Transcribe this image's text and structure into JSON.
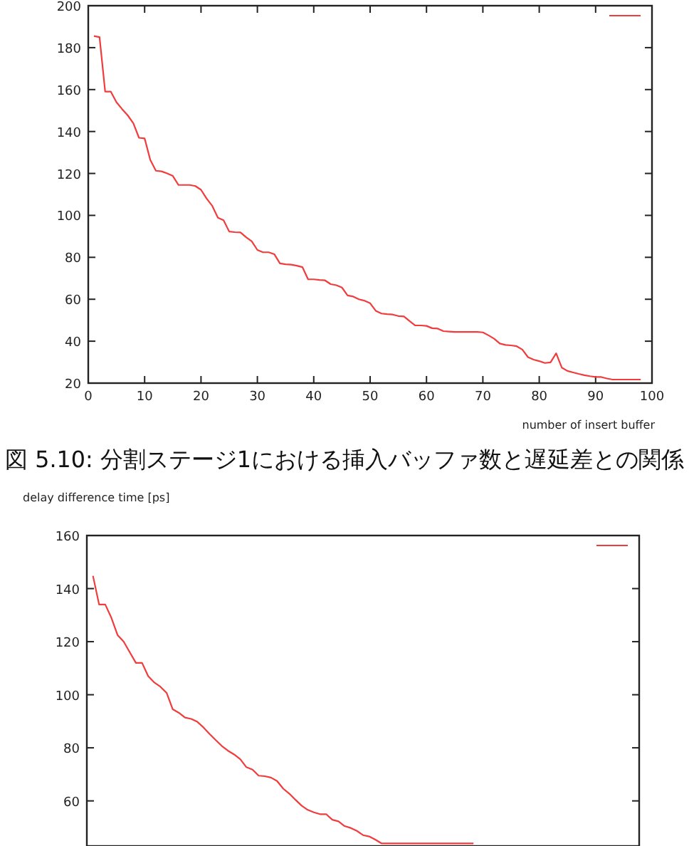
{
  "chart_data": [
    {
      "type": "line",
      "xlabel": "number of insert buffer",
      "annotations": [
        "図 5.10: 分割ステージ1における挿入バッファ数と遅延差との関係"
      ],
      "x": [
        1,
        2,
        3,
        4,
        5,
        6,
        7,
        8,
        9,
        10,
        11,
        12,
        13,
        14,
        15,
        16,
        17,
        18,
        19,
        20,
        21,
        22,
        23,
        24,
        25,
        26,
        27,
        28,
        29,
        30,
        31,
        32,
        33,
        34,
        35,
        36,
        37,
        38,
        39,
        40,
        41,
        42,
        43,
        44,
        45,
        46,
        47,
        48,
        49,
        50,
        51,
        52,
        53,
        54,
        55,
        56,
        57,
        58,
        59,
        60,
        61,
        62,
        63,
        64,
        65,
        66,
        67,
        68,
        69,
        70,
        71,
        72,
        73,
        74,
        75,
        76,
        77,
        78,
        79,
        80,
        81,
        82,
        83,
        84,
        85,
        86,
        87,
        88,
        89,
        90,
        91,
        92,
        93,
        94,
        95,
        96,
        97,
        98
      ],
      "series": [
        {
          "color": "#f03c3c",
          "values": [
            185.5,
            185,
            159,
            159,
            154,
            150.7,
            147.7,
            143.9,
            137,
            136.7,
            126.5,
            121.3,
            121,
            120,
            118.8,
            114.5,
            114.5,
            114.5,
            114,
            112.2,
            108,
            104.5,
            98.9,
            97.7,
            92.3,
            92,
            91.9,
            89.6,
            87.6,
            83.5,
            82.4,
            82.4,
            81.5,
            77.1,
            76.7,
            76.5,
            76,
            75.3,
            69.5,
            69.5,
            69.2,
            69,
            67.2,
            66.7,
            65.6,
            61.8,
            61.3,
            60,
            59.3,
            58.1,
            54.5,
            53.2,
            52.9,
            52.7,
            52,
            51.8,
            49.6,
            47.5,
            47.5,
            47.3,
            46.2,
            46,
            44.8,
            44.6,
            44.4,
            44.4,
            44.4,
            44.4,
            44.4,
            44.2,
            42.8,
            41.2,
            38.9,
            38.2,
            38,
            37.6,
            36,
            32.4,
            31.2,
            30.5,
            29.6,
            29.9,
            34.2,
            27.4,
            25.8,
            25.1,
            24.4,
            23.8,
            23.3,
            22.9,
            22.9,
            22.2,
            21.7,
            21.7,
            21.7,
            21.7,
            21.7,
            21.7
          ]
        }
      ],
      "xlim": [
        0,
        100
      ],
      "xticks": [
        0,
        10,
        20,
        30,
        40,
        50,
        60,
        70,
        80,
        90,
        100
      ],
      "ylim": [
        20,
        200
      ],
      "yticks": [
        20,
        40,
        60,
        80,
        100,
        120,
        140,
        160,
        180,
        200
      ]
    },
    {
      "type": "line",
      "ylabel": "delay difference time [ps]",
      "categories": [
        null,
        null,
        null,
        null,
        null,
        null,
        null,
        null,
        null,
        null,
        null,
        null,
        null,
        null,
        null,
        null,
        null,
        null,
        null,
        null,
        null,
        null,
        null,
        null,
        null,
        null,
        null,
        null,
        null,
        null,
        null,
        null,
        null,
        null,
        null,
        null,
        null,
        null,
        null,
        null,
        null,
        null,
        null,
        null,
        null,
        null,
        null,
        null,
        null,
        null,
        null,
        null,
        null,
        null,
        null,
        null,
        null,
        null,
        null,
        null,
        null,
        null,
        null,
        null,
        null,
        null,
        null,
        null,
        null,
        null,
        null,
        null,
        null,
        null,
        null,
        null,
        null,
        null,
        null,
        null,
        null,
        null,
        null,
        null,
        null,
        null,
        null,
        null,
        null,
        null,
        null
      ],
      "series": [
        {
          "color": "#f03c3c",
          "values": [
            null,
            144.8,
            134,
            134,
            129,
            122.5,
            120,
            116,
            112,
            112,
            107,
            104.6,
            103,
            100.7,
            94.5,
            93.2,
            91.4,
            90.9,
            89.8,
            87.7,
            85.2,
            82.9,
            80.7,
            78.9,
            77.5,
            75.7,
            72.7,
            71.8,
            69.5,
            69.3,
            68.8,
            67.5,
            64.6,
            62.7,
            60.4,
            58.2,
            56.6,
            55.7,
            55,
            55,
            52.9,
            52.3,
            50.5,
            49.8,
            48.7,
            47.1,
            46.6,
            45.4,
            44,
            44,
            44,
            44,
            44,
            44,
            44,
            44,
            44,
            44,
            44,
            44,
            44,
            44,
            44,
            44,
            null,
            null,
            null,
            null,
            null,
            null,
            null,
            null,
            null,
            null,
            null,
            null,
            null,
            null,
            null,
            null,
            null,
            null,
            null,
            null,
            null,
            null,
            null,
            null,
            null,
            null,
            null
          ]
        }
      ],
      "ylim": [
        43,
        160
      ],
      "yticks": [
        60,
        80,
        100,
        120,
        140,
        160
      ],
      "tick_labels": "y"
    }
  ]
}
